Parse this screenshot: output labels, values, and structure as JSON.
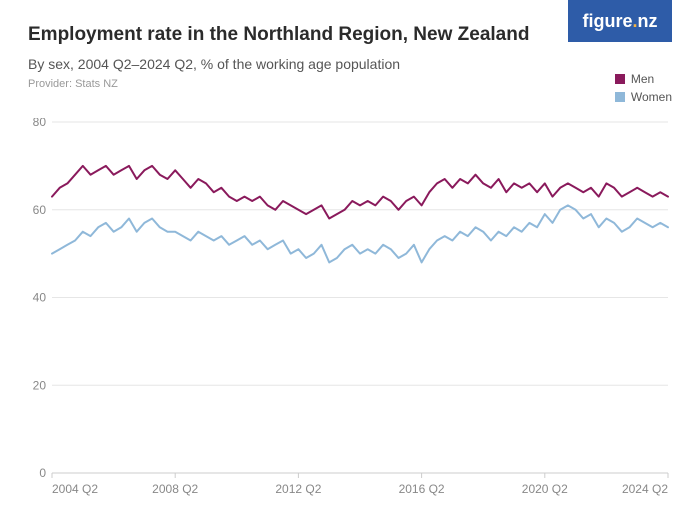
{
  "logo": {
    "text": "figure.nz"
  },
  "header": {
    "title": "Employment rate in the Northland Region, New Zealand",
    "subtitle": "By sex, 2004 Q2–2024 Q2, % of the working age population",
    "provider": "Provider: Stats NZ"
  },
  "legend": {
    "items": [
      {
        "label": "Men",
        "color": "#8a1a5c"
      },
      {
        "label": "Women",
        "color": "#8fb8d9"
      }
    ]
  },
  "chart": {
    "type": "line",
    "background_color": "#ffffff",
    "grid_color": "#e6e6e6",
    "axis_color": "#cccccc",
    "tick_color": "#888888",
    "tick_fontsize": 12,
    "line_width": 2,
    "ylim": [
      0,
      80
    ],
    "ytick_step": 20,
    "x_count": 81,
    "x_labels": [
      {
        "index": 0,
        "label": "2004 Q2"
      },
      {
        "index": 16,
        "label": "2008 Q2"
      },
      {
        "index": 32,
        "label": "2012 Q2"
      },
      {
        "index": 48,
        "label": "2016 Q2"
      },
      {
        "index": 64,
        "label": "2020 Q2"
      },
      {
        "index": 80,
        "label": "2024 Q2"
      }
    ],
    "series": [
      {
        "name": "Men",
        "color": "#8a1a5c",
        "values": [
          63,
          65,
          66,
          68,
          70,
          68,
          69,
          70,
          68,
          69,
          70,
          67,
          69,
          70,
          68,
          67,
          69,
          67,
          65,
          67,
          66,
          64,
          65,
          63,
          62,
          63,
          62,
          63,
          61,
          60,
          62,
          61,
          60,
          59,
          60,
          61,
          58,
          59,
          60,
          62,
          61,
          62,
          61,
          63,
          62,
          60,
          62,
          63,
          61,
          64,
          66,
          67,
          65,
          67,
          66,
          68,
          66,
          65,
          67,
          64,
          66,
          65,
          66,
          64,
          66,
          63,
          65,
          66,
          65,
          64,
          65,
          63,
          66,
          65,
          63,
          64,
          65,
          64,
          63,
          64,
          63
        ]
      },
      {
        "name": "Women",
        "color": "#8fb8d9",
        "values": [
          50,
          51,
          52,
          53,
          55,
          54,
          56,
          57,
          55,
          56,
          58,
          55,
          57,
          58,
          56,
          55,
          55,
          54,
          53,
          55,
          54,
          53,
          54,
          52,
          53,
          54,
          52,
          53,
          51,
          52,
          53,
          50,
          51,
          49,
          50,
          52,
          48,
          49,
          51,
          52,
          50,
          51,
          50,
          52,
          51,
          49,
          50,
          52,
          48,
          51,
          53,
          54,
          53,
          55,
          54,
          56,
          55,
          53,
          55,
          54,
          56,
          55,
          57,
          56,
          59,
          57,
          60,
          61,
          60,
          58,
          59,
          56,
          58,
          57,
          55,
          56,
          58,
          57,
          56,
          57,
          56
        ]
      }
    ]
  }
}
